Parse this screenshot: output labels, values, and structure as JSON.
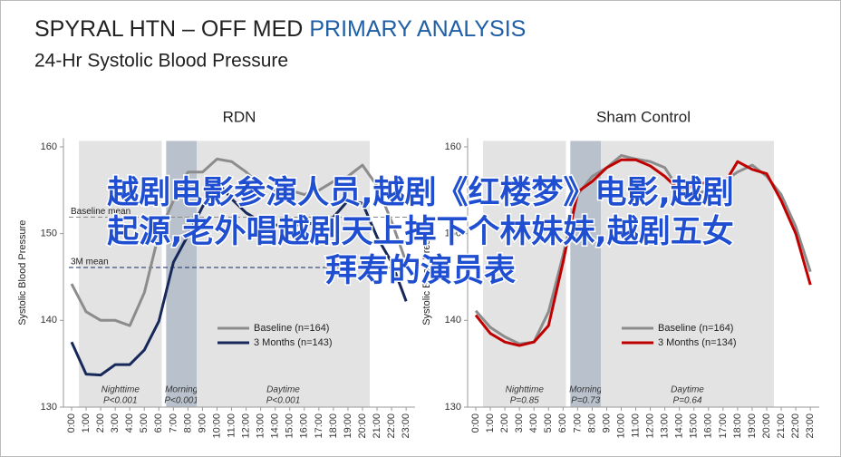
{
  "header": {
    "title_part1": "SPYRAL HTN – OFF MED",
    "title_part2": "PRIMARY ANALYSIS",
    "subtitle": "24-Hr Systolic Blood Pressure"
  },
  "chart_data": [
    {
      "type": "line",
      "title": "RDN",
      "ylabel": "Systolic Blood Pressure",
      "categories": [
        "0:00",
        "1:00",
        "2:00",
        "3:00",
        "4:00",
        "5:00",
        "6:00",
        "7:00",
        "8:00",
        "9:00",
        "10:00",
        "11:00",
        "12:00",
        "13:00",
        "14:00",
        "15:00",
        "16:00",
        "17:00",
        "18:00",
        "19:00",
        "20:00",
        "21:00",
        "22:00",
        "23:00"
      ],
      "ylim": [
        130,
        161
      ],
      "yticks": [
        130,
        140,
        150,
        160
      ],
      "series": [
        {
          "name": "Baseline (n=164)",
          "color": "#8c8c8c",
          "values": [
            144.2,
            141.0,
            140.0,
            140.0,
            139.4,
            143.2,
            150.0,
            153.8,
            157.1,
            157.1,
            158.6,
            158.3,
            157.1,
            155.5,
            155.0,
            155.0,
            154.5,
            155.0,
            156.0,
            156.6,
            157.9,
            155.5,
            151.4,
            146.7
          ]
        },
        {
          "name": "3 Months (n=143)",
          "color": "#17285a",
          "values": [
            137.5,
            133.8,
            133.7,
            134.9,
            134.9,
            136.6,
            139.9,
            146.7,
            149.8,
            153.1,
            156.0,
            154.0,
            152.4,
            151.4,
            151.0,
            151.0,
            151.0,
            151.4,
            151.9,
            153.8,
            153.5,
            149.6,
            146.7,
            142.2
          ]
        }
      ],
      "reference_lines": [
        {
          "label": "Baseline mean",
          "value": 151.9
        },
        {
          "label": "3M mean",
          "value": 146.1
        }
      ],
      "regions": [
        {
          "label": "Nighttime",
          "p_label": "P<0.001",
          "start": 0.5,
          "end": 6.2,
          "color": "#e3e3e3"
        },
        {
          "label": "Morning",
          "p_label": "P<0.001",
          "start": 6.5,
          "end": 8.6,
          "color": "#b9c2cc"
        },
        {
          "label": "Daytime",
          "p_label": "P<0.001",
          "start": 8.6,
          "end": 20.5,
          "color": "#e3e3e3"
        }
      ]
    },
    {
      "type": "line",
      "title": "Sham Control",
      "ylabel": "Systolic Blood Pressure",
      "categories": [
        "0:00",
        "1:00",
        "2:00",
        "3:00",
        "4:00",
        "5:00",
        "6:00",
        "7:00",
        "8:00",
        "9:00",
        "10:00",
        "11:00",
        "12:00",
        "13:00",
        "14:00",
        "15:00",
        "16:00",
        "17:00",
        "18:00",
        "19:00",
        "20:00",
        "21:00",
        "22:00",
        "23:00"
      ],
      "ylim": [
        130,
        161
      ],
      "yticks": [
        130,
        140,
        150,
        160
      ],
      "series": [
        {
          "name": "Baseline (n=164)",
          "color": "#8c8c8c",
          "values": [
            141.1,
            139.2,
            138.1,
            137.3,
            137.5,
            141.0,
            147.5,
            154.5,
            156.6,
            157.6,
            159.0,
            158.6,
            158.3,
            157.6,
            155.0,
            154.5,
            155.0,
            156.0,
            157.1,
            157.9,
            156.6,
            154.5,
            150.8,
            145.6
          ]
        },
        {
          "name": "3 Months (n=134)",
          "color": "#c00000",
          "values": [
            140.6,
            138.5,
            137.5,
            137.1,
            137.5,
            139.4,
            146.7,
            154.8,
            156.0,
            157.6,
            158.5,
            158.5,
            157.8,
            156.6,
            155.0,
            155.5,
            156.0,
            155.5,
            158.3,
            157.4,
            156.9,
            153.8,
            150.0,
            144.1
          ]
        }
      ],
      "reference_lines": [],
      "regions": [
        {
          "label": "Nighttime",
          "p_label": "P=0.85",
          "start": 0.5,
          "end": 6.2,
          "color": "#e3e3e3"
        },
        {
          "label": "Morning",
          "p_label": "P=0.73",
          "start": 6.5,
          "end": 8.6,
          "color": "#b9c2cc"
        },
        {
          "label": "Daytime",
          "p_label": "P=0.64",
          "start": 8.6,
          "end": 20.5,
          "color": "#e3e3e3"
        }
      ]
    }
  ],
  "overlay": {
    "lines": [
      "越剧电影参演人员,越剧《红楼梦》电影,越剧",
      "起源,老外唱越剧天上掉下个林妹妹,越剧五女",
      "拜寿的演员表"
    ]
  }
}
